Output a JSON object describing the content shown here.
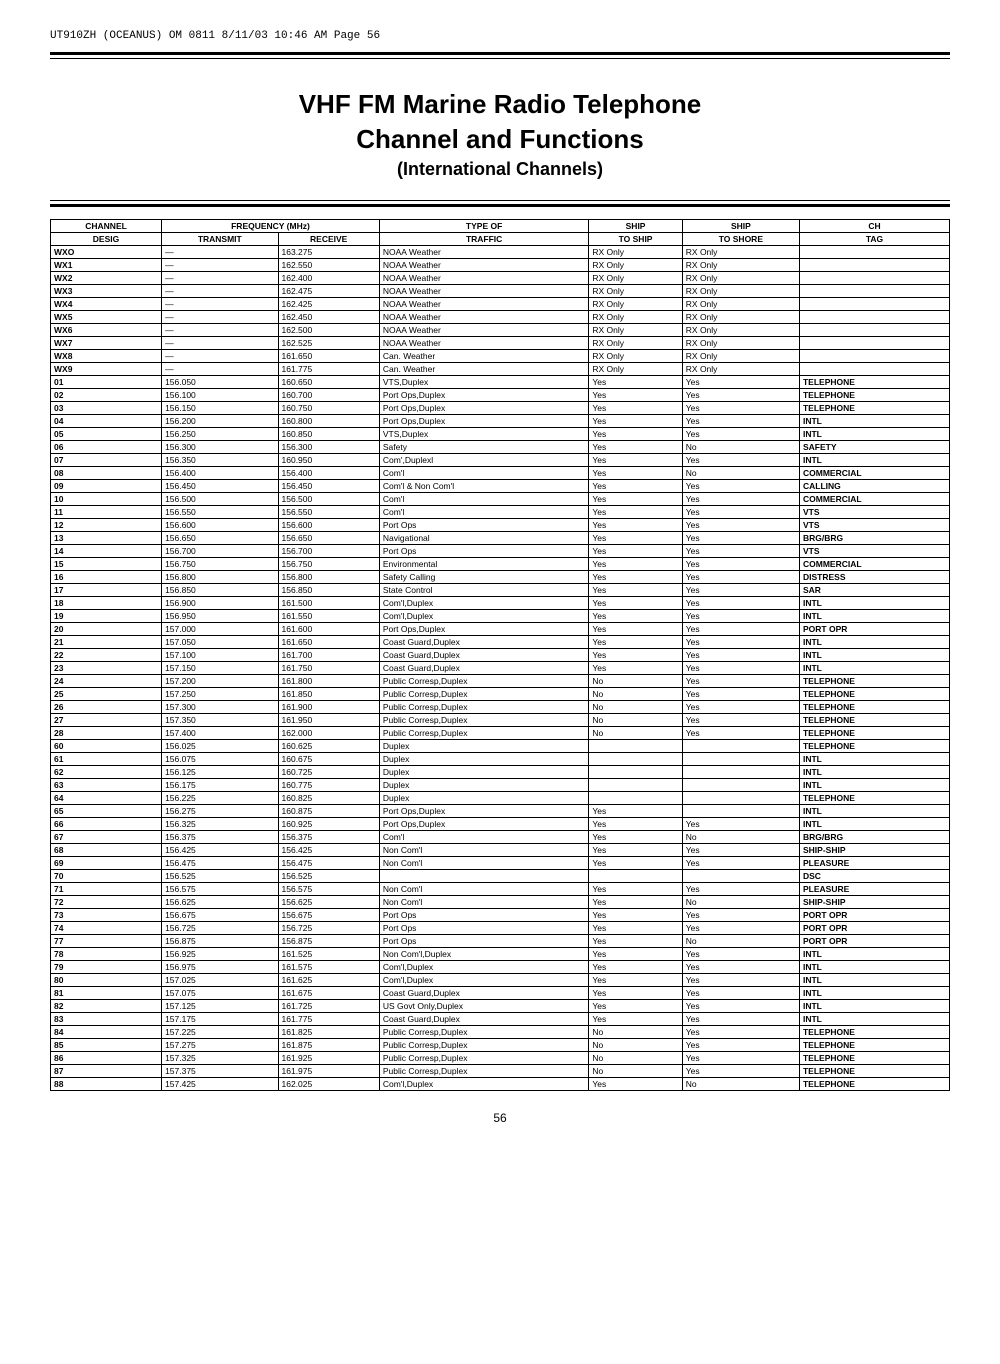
{
  "header_text": "UT910ZH (OCEANUS) OM 0811  8/11/03  10:46 AM  Page 56",
  "title": "VHF FM Marine Radio Telephone",
  "subtitle": "Channel and Functions",
  "note": "(International Channels)",
  "columns": [
    "CHANNEL DESIG",
    "FREQUENCY (MHz) TRANSMIT",
    "FREQUENCY (MHz) RECEIVE",
    "TYPE OF TRAFFIC",
    "SHIP TO SHIP",
    "SHIP TO SHORE",
    "CH TAG"
  ],
  "rows": [
    [
      "WXO",
      "—",
      "163.275",
      "NOAA Weather",
      "RX Only",
      "RX Only",
      ""
    ],
    [
      "WX1",
      "—",
      "162.550",
      "NOAA Weather",
      "RX Only",
      "RX Only",
      ""
    ],
    [
      "WX2",
      "—",
      "162.400",
      "NOAA Weather",
      "RX Only",
      "RX Only",
      ""
    ],
    [
      "WX3",
      "—",
      "162.475",
      "NOAA Weather",
      "RX Only",
      "RX Only",
      ""
    ],
    [
      "WX4",
      "—",
      "162.425",
      "NOAA Weather",
      "RX Only",
      "RX Only",
      ""
    ],
    [
      "WX5",
      "—",
      "162.450",
      "NOAA Weather",
      "RX Only",
      "RX Only",
      ""
    ],
    [
      "WX6",
      "—",
      "162.500",
      "NOAA Weather",
      "RX Only",
      "RX Only",
      ""
    ],
    [
      "WX7",
      "—",
      "162.525",
      "NOAA Weather",
      "RX Only",
      "RX Only",
      ""
    ],
    [
      "WX8",
      "—",
      "161.650",
      "Can. Weather",
      "RX Only",
      "RX Only",
      ""
    ],
    [
      "WX9",
      "—",
      "161.775",
      "Can. Weather",
      "RX Only",
      "RX Only",
      ""
    ],
    [
      "01",
      "156.050",
      "160.650",
      "VTS,Duplex",
      "Yes",
      "Yes",
      "TELEPHONE"
    ],
    [
      "02",
      "156.100",
      "160.700",
      "Port Ops,Duplex",
      "Yes",
      "Yes",
      "TELEPHONE"
    ],
    [
      "03",
      "156.150",
      "160.750",
      "Port Ops,Duplex",
      "Yes",
      "Yes",
      "TELEPHONE"
    ],
    [
      "04",
      "156.200",
      "160.800",
      "Port Ops,Duplex",
      "Yes",
      "Yes",
      "INTL"
    ],
    [
      "05",
      "156.250",
      "160.850",
      "VTS,Duplex",
      "Yes",
      "Yes",
      "INTL"
    ],
    [
      "06",
      "156.300",
      "156.300",
      "Safety",
      "Yes",
      "No",
      "SAFETY"
    ],
    [
      "07",
      "156.350",
      "160.950",
      "Com',Duplexl",
      "Yes",
      "Yes",
      "INTL"
    ],
    [
      "08",
      "156.400",
      "156.400",
      "Com'l",
      "Yes",
      "No",
      "COMMERCIAL"
    ],
    [
      "09",
      "156.450",
      "156.450",
      "Com'l & Non Com'l",
      "Yes",
      "Yes",
      "CALLING"
    ],
    [
      "10",
      "156.500",
      "156.500",
      "Com'l",
      "Yes",
      "Yes",
      "COMMERCIAL"
    ],
    [
      "11",
      "156.550",
      "156.550",
      "Com'l",
      "Yes",
      "Yes",
      "VTS"
    ],
    [
      "12",
      "156.600",
      "156.600",
      "Port Ops",
      "Yes",
      "Yes",
      "VTS"
    ],
    [
      "13",
      "156.650",
      "156.650",
      "Navigational",
      "Yes",
      "Yes",
      "BRG/BRG"
    ],
    [
      "14",
      "156.700",
      "156.700",
      "Port Ops",
      "Yes",
      "Yes",
      "VTS"
    ],
    [
      "15",
      "156.750",
      "156.750",
      "Environmental",
      "Yes",
      "Yes",
      "COMMERCIAL"
    ],
    [
      "16",
      "156.800",
      "156.800",
      "Safety Calling",
      "Yes",
      "Yes",
      "DISTRESS"
    ],
    [
      "17",
      "156.850",
      "156.850",
      "State Control",
      "Yes",
      "Yes",
      "SAR"
    ],
    [
      "18",
      "156.900",
      "161.500",
      "Com'l,Duplex",
      "Yes",
      "Yes",
      "INTL"
    ],
    [
      "19",
      "156.950",
      "161.550",
      "Com'l,Duplex",
      "Yes",
      "Yes",
      "INTL"
    ],
    [
      "20",
      "157.000",
      "161.600",
      "Port Ops,Duplex",
      "Yes",
      "Yes",
      "PORT OPR"
    ],
    [
      "21",
      "157.050",
      "161.650",
      "Coast Guard,Duplex",
      "Yes",
      "Yes",
      "INTL"
    ],
    [
      "22",
      "157.100",
      "161.700",
      "Coast Guard,Duplex",
      "Yes",
      "Yes",
      "INTL"
    ],
    [
      "23",
      "157.150",
      "161.750",
      "Coast Guard,Duplex",
      "Yes",
      "Yes",
      "INTL"
    ],
    [
      "24",
      "157.200",
      "161.800",
      "Public Corresp,Duplex",
      "No",
      "Yes",
      "TELEPHONE"
    ],
    [
      "25",
      "157.250",
      "161.850",
      "Public Corresp,Duplex",
      "No",
      "Yes",
      "TELEPHONE"
    ],
    [
      "26",
      "157.300",
      "161.900",
      "Public Corresp,Duplex",
      "No",
      "Yes",
      "TELEPHONE"
    ],
    [
      "27",
      "157.350",
      "161.950",
      "Public Corresp,Duplex",
      "No",
      "Yes",
      "TELEPHONE"
    ],
    [
      "28",
      "157.400",
      "162.000",
      "Public Corresp,Duplex",
      "No",
      "Yes",
      "TELEPHONE"
    ],
    [
      "60",
      "156.025",
      "160.625",
      "Duplex",
      "",
      "",
      "TELEPHONE"
    ],
    [
      "61",
      "156.075",
      "160.675",
      "Duplex",
      "",
      "",
      "INTL"
    ],
    [
      "62",
      "156.125",
      "160.725",
      "Duplex",
      "",
      "",
      "INTL"
    ],
    [
      "63",
      "156.175",
      "160.775",
      "Duplex",
      "",
      "",
      "INTL"
    ],
    [
      "64",
      "156.225",
      "160.825",
      "Duplex",
      "",
      "",
      "TELEPHONE"
    ],
    [
      "65",
      "156.275",
      "160.875",
      "Port Ops,Duplex",
      "Yes",
      "",
      "INTL"
    ],
    [
      "66",
      "156.325",
      "160.925",
      "Port Ops,Duplex",
      "Yes",
      "Yes",
      "INTL"
    ],
    [
      "67",
      "156.375",
      "156.375",
      "Com'l",
      "Yes",
      "No",
      "BRG/BRG"
    ],
    [
      "68",
      "156.425",
      "156.425",
      "Non Com'l",
      "Yes",
      "Yes",
      "SHIP-SHIP"
    ],
    [
      "69",
      "156.475",
      "156.475",
      "Non Com'l",
      "Yes",
      "Yes",
      "PLEASURE"
    ],
    [
      "70",
      "156.525",
      "156.525",
      "",
      "",
      "",
      "DSC"
    ],
    [
      "71",
      "156.575",
      "156.575",
      "Non Com'l",
      "Yes",
      "Yes",
      "PLEASURE"
    ],
    [
      "72",
      "156.625",
      "156.625",
      "Non Com'l",
      "Yes",
      "No",
      "SHIP-SHIP"
    ],
    [
      "73",
      "156.675",
      "156.675",
      "Port Ops",
      "Yes",
      "Yes",
      "PORT OPR"
    ],
    [
      "74",
      "156.725",
      "156.725",
      "Port Ops",
      "Yes",
      "Yes",
      "PORT OPR"
    ],
    [
      "77",
      "156.875",
      "156.875",
      "Port Ops",
      "Yes",
      "No",
      "PORT OPR"
    ],
    [
      "78",
      "156.925",
      "161.525",
      "Non Com'l,Duplex",
      "Yes",
      "Yes",
      "INTL"
    ],
    [
      "79",
      "156.975",
      "161.575",
      "Com'l,Duplex",
      "Yes",
      "Yes",
      "INTL"
    ],
    [
      "80",
      "157.025",
      "161.625",
      "Com'l,Duplex",
      "Yes",
      "Yes",
      "INTL"
    ],
    [
      "81",
      "157.075",
      "161.675",
      "Coast Guard,Duplex",
      "Yes",
      "Yes",
      "INTL"
    ],
    [
      "82",
      "157.125",
      "161.725",
      "US Govt Only,Duplex",
      "Yes",
      "Yes",
      "INTL"
    ],
    [
      "83",
      "157.175",
      "161.775",
      "Coast Guard,Duplex",
      "Yes",
      "Yes",
      "INTL"
    ],
    [
      "84",
      "157.225",
      "161.825",
      "Public Corresp,Duplex",
      "No",
      "Yes",
      "TELEPHONE"
    ],
    [
      "85",
      "157.275",
      "161.875",
      "Public Corresp,Duplex",
      "No",
      "Yes",
      "TELEPHONE"
    ],
    [
      "86",
      "157.325",
      "161.925",
      "Public Corresp,Duplex",
      "No",
      "Yes",
      "TELEPHONE"
    ],
    [
      "87",
      "157.375",
      "161.975",
      "Public Corresp,Duplex",
      "No",
      "Yes",
      "TELEPHONE"
    ],
    [
      "88",
      "157.425",
      "162.025",
      "Com'l,Duplex",
      "Yes",
      "No",
      "TELEPHONE"
    ]
  ],
  "page_number": "56",
  "table_style": {
    "header_bg": "#ffffff",
    "border_color": "#000000",
    "font_size": 8.5,
    "title_fontsize": 26
  },
  "col_groups": {
    "header_row1": [
      "CHANNEL",
      "FREQUENCY (MHz)",
      "",
      "TYPE OF",
      "SHIP",
      "SHIP",
      "CH"
    ],
    "header_row2": [
      "DESIG",
      "TRANSMIT",
      "RECEIVE",
      "TRAFFIC",
      "TO SHIP",
      "TO SHORE",
      "TAG"
    ]
  }
}
